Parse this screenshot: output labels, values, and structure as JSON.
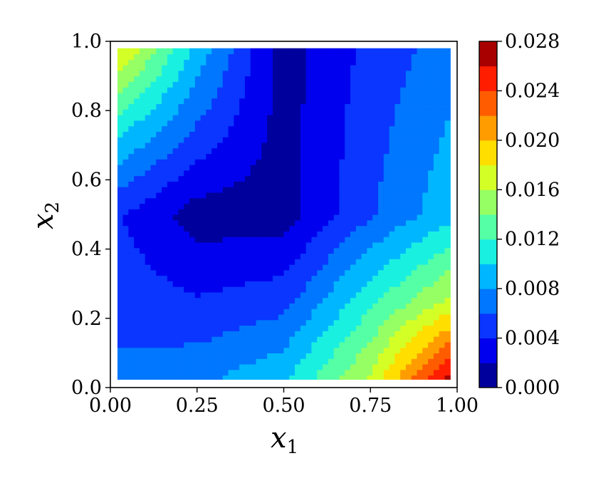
{
  "chart_data": {
    "type": "contour",
    "xlabel": "x",
    "xlabel_sub": "1",
    "ylabel": "x",
    "ylabel_sub": "2",
    "xlim": [
      0.0,
      1.0
    ],
    "ylim": [
      0.0,
      1.0
    ],
    "x_ticks": [
      "0.00",
      "0.25",
      "0.50",
      "0.75",
      "1.00"
    ],
    "x_tick_values": [
      0.0,
      0.25,
      0.5,
      0.75,
      1.0
    ],
    "y_ticks": [
      "0.0",
      "0.2",
      "0.4",
      "0.6",
      "0.8",
      "1.0"
    ],
    "y_tick_values": [
      0.0,
      0.2,
      0.4,
      0.6,
      0.8,
      1.0
    ],
    "colorbar": {
      "ticks": [
        "0.000",
        "0.004",
        "0.008",
        "0.012",
        "0.016",
        "0.020",
        "0.024",
        "0.028"
      ],
      "tick_values": [
        0.0,
        0.004,
        0.008,
        0.012,
        0.016,
        0.02,
        0.024,
        0.028
      ],
      "levels": [
        0.0,
        0.002,
        0.004,
        0.006,
        0.008,
        0.01,
        0.012,
        0.014,
        0.016,
        0.018,
        0.02,
        0.022,
        0.024,
        0.026,
        0.028
      ],
      "colors": [
        "#00009c",
        "#0000ee",
        "#0a36ff",
        "#0077ff",
        "#00b7ff",
        "#1af0e0",
        "#55ffa5",
        "#96ff64",
        "#d4ff26",
        "#ffde00",
        "#ff9c00",
        "#ff5c00",
        "#ff1e00",
        "#a80000"
      ]
    },
    "field_grid": {
      "x": [
        0.02,
        0.25,
        0.5,
        0.75,
        0.98
      ],
      "y": [
        0.02,
        0.25,
        0.5,
        0.75,
        0.98
      ],
      "z": [
        [
          0.0066,
          0.0075,
          0.0098,
          0.0165,
          0.0275
        ],
        [
          0.0052,
          0.0042,
          0.0052,
          0.0115,
          0.0165
        ],
        [
          0.0042,
          0.001,
          0.001,
          0.0058,
          0.0094
        ],
        [
          0.0108,
          0.0058,
          0.0012,
          0.0052,
          0.0082
        ],
        [
          0.0185,
          0.0094,
          0.001,
          0.0046,
          0.007
        ]
      ]
    }
  }
}
